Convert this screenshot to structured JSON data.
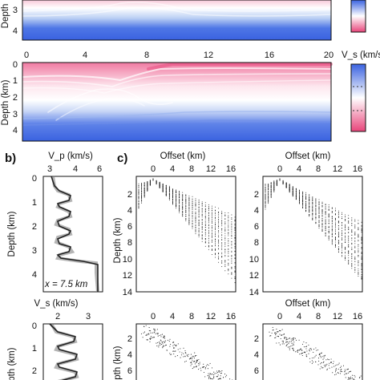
{
  "panel_a": {
    "top_ylabel": "Depth",
    "top_ticks_y": [
      "3",
      "4"
    ],
    "top_colorbar_label": "",
    "bottom_xticks": [
      "0",
      "4",
      "8",
      "12",
      "16",
      "20"
    ],
    "bottom_ylabel": "Depth (km)",
    "bottom_yticks": [
      "0",
      "1",
      "2",
      "3",
      "4"
    ],
    "colorbar_label": "V_s (km/s)"
  },
  "panel_b": {
    "label": "b)",
    "top_xlabel": "V_p (km/s)",
    "top_xticks": [
      "3",
      "4",
      "6"
    ],
    "top_ylabel": "Depth (km)",
    "top_yticks": [
      "0",
      "1",
      "2",
      "3",
      "4"
    ],
    "annotation": "x = 7.5 km",
    "bottom_xlabel": "V_s (km/s)",
    "bottom_xticks": [
      "2",
      "3"
    ],
    "bottom_ylabel": "Depth (km)",
    "bottom_yticks": [
      "0",
      "1",
      "2"
    ]
  },
  "panel_c": {
    "label": "c)",
    "xlabel": "Offset (km)",
    "xticks": [
      "0",
      "4",
      "8",
      "12",
      "16"
    ],
    "ylabel": "Depth (km)",
    "yticks": [
      "2",
      "4",
      "6",
      "8",
      "10",
      "12",
      "14"
    ],
    "yticks_right": [
      "2",
      "4",
      "6",
      "8",
      "10",
      "12",
      "14"
    ],
    "bottom_yticks": [
      "2",
      "4",
      "6"
    ],
    "bottom_ylabel": "Depth (km)"
  },
  "colors": {
    "low_velocity": "#e8457a",
    "mid_velocity": "#ffffff",
    "high_velocity": "#3a62e0",
    "trace": "#222222"
  }
}
